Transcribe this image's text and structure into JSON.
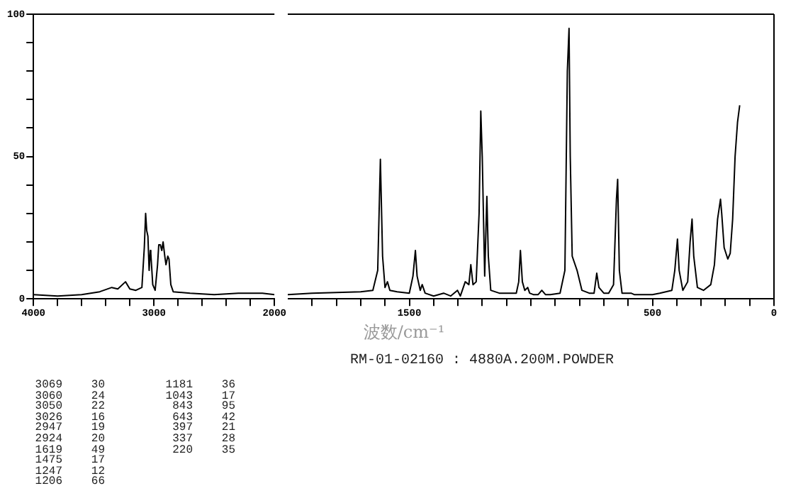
{
  "chart_data": [
    {
      "type": "line",
      "x": [
        4000,
        3800,
        3600,
        3450,
        3350,
        3300,
        3236,
        3200,
        3150,
        3100,
        3080,
        3069,
        3060,
        3050,
        3040,
        3030,
        3026,
        3010,
        2990,
        2970,
        2960,
        2947,
        2935,
        2924,
        2910,
        2900,
        2885,
        2875,
        2860,
        2840,
        2700,
        2500,
        2300,
        2100,
        2000
      ],
      "values": [
        1.5,
        1,
        1.5,
        2.5,
        4,
        3.5,
        6,
        3.5,
        3,
        4,
        18,
        30,
        24,
        22,
        10,
        17,
        16,
        5,
        3,
        12,
        19,
        19,
        17,
        20,
        15,
        12,
        15,
        14,
        5,
        2.5,
        2,
        1.5,
        2,
        2,
        1.5
      ],
      "color": "#000000",
      "xlim": [
        4000,
        2000
      ],
      "xticks": [
        4000,
        {
          "value": 3800,
          "label": null
        },
        {
          "value": 3600,
          "label": null
        },
        {
          "value": 3400,
          "label": null
        },
        {
          "value": 3200,
          "label": null
        },
        3000,
        {
          "value": 2800,
          "label": null
        },
        {
          "value": 2600,
          "label": null
        },
        {
          "value": 2400,
          "label": null
        },
        {
          "value": 2200,
          "label": null
        },
        2000
      ],
      "ylim": [
        0,
        100
      ],
      "yticks": [
        0,
        {
          "value": 10,
          "label": null
        },
        {
          "value": 20,
          "label": null
        },
        {
          "value": 30,
          "label": null
        },
        {
          "value": 40,
          "label": null
        },
        50,
        {
          "value": 60,
          "label": null
        },
        {
          "value": 70,
          "label": null
        },
        {
          "value": 80,
          "label": null
        },
        {
          "value": 90,
          "label": null
        },
        100
      ],
      "grid": false,
      "legend": false,
      "marker": "none",
      "line_style": "solid"
    },
    {
      "type": "line",
      "xlabel": "波数/cm⁻¹",
      "x": [
        2000,
        1900,
        1700,
        1650,
        1630,
        1619,
        1610,
        1600,
        1590,
        1580,
        1550,
        1500,
        1485,
        1475,
        1468,
        1455,
        1447,
        1435,
        1400,
        1359,
        1330,
        1302,
        1290,
        1270,
        1255,
        1247,
        1238,
        1225,
        1213,
        1206,
        1200,
        1190,
        1181,
        1175,
        1165,
        1130,
        1060,
        1050,
        1043,
        1035,
        1025,
        1013,
        1005,
        990,
        970,
        955,
        940,
        920,
        880,
        860,
        850,
        843,
        838,
        830,
        810,
        790,
        760,
        740,
        729,
        720,
        700,
        680,
        660,
        648,
        643,
        636,
        625,
        600,
        588,
        575,
        550,
        500,
        470,
        420,
        408,
        397,
        390,
        375,
        355,
        345,
        337,
        330,
        315,
        290,
        260,
        245,
        232,
        220,
        215,
        205,
        190,
        180,
        170,
        160,
        150,
        141
      ],
      "values": [
        1.5,
        2,
        2.5,
        3,
        10,
        49,
        15,
        4,
        6,
        3,
        2.5,
        2,
        8,
        17,
        8,
        3,
        5,
        2,
        1,
        2,
        1,
        3,
        1,
        6,
        5,
        12,
        5,
        6,
        30,
        66,
        50,
        8,
        36,
        15,
        3,
        2,
        2,
        6,
        17,
        6,
        3,
        4,
        2,
        1.5,
        1.5,
        3,
        1.5,
        1.5,
        2,
        10,
        80,
        95,
        50,
        15,
        10,
        3,
        2,
        2,
        9,
        4,
        2,
        2,
        5,
        35,
        42,
        10,
        2,
        2,
        2,
        1.5,
        1.5,
        1.5,
        2,
        3,
        10,
        21,
        10,
        3,
        6,
        20,
        28,
        15,
        4,
        3,
        5,
        12,
        28,
        35,
        30,
        18,
        14,
        16,
        28,
        50,
        62,
        68
      ],
      "color": "#000000",
      "xlim": [
        2000,
        0
      ],
      "xticks": [
        {
          "value": 1900,
          "label": null
        },
        {
          "value": 1800,
          "label": null
        },
        {
          "value": 1700,
          "label": null
        },
        {
          "value": 1600,
          "label": null
        },
        1500,
        {
          "value": 1400,
          "label": null
        },
        {
          "value": 1300,
          "label": null
        },
        {
          "value": 1200,
          "label": null
        },
        {
          "value": 1100,
          "label": null
        },
        {
          "value": 1000,
          "label": null
        },
        {
          "value": 900,
          "label": null
        },
        {
          "value": 800,
          "label": null
        },
        {
          "value": 700,
          "label": null
        },
        {
          "value": 600,
          "label": null
        },
        500,
        {
          "value": 400,
          "label": null
        },
        {
          "value": 300,
          "label": null
        },
        {
          "value": 200,
          "label": null
        },
        {
          "value": 100,
          "label": null
        },
        0
      ],
      "ylim": [
        0,
        100
      ],
      "tick_labels": "x",
      "grid": false,
      "legend": false,
      "marker": "none",
      "line_style": "solid",
      "annotations": [
        "RM-01-02160 : 4880A.200M.POWDER",
        "3069 30",
        "3060 24",
        "3050 22",
        "3026 16",
        "2947 19",
        "2924 20",
        "1619 49",
        "1475 17",
        "1247 12",
        "1206 66",
        "1181 36",
        "1043 17",
        "843 95",
        "643 42",
        "397 21",
        "337 28",
        "220 35"
      ]
    }
  ]
}
